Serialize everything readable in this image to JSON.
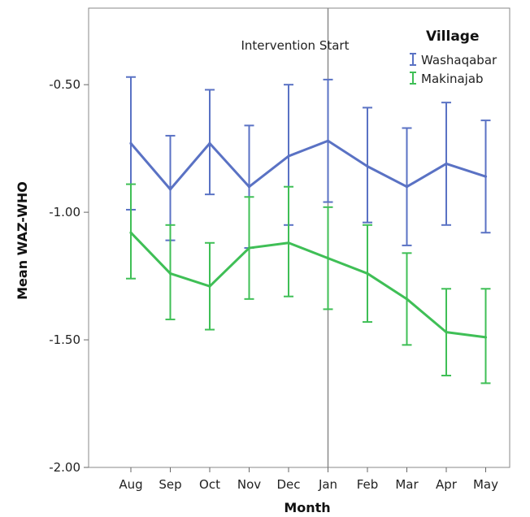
{
  "chart_data": {
    "type": "line",
    "xlabel": "Month",
    "ylabel": "Mean WAZ-WHO",
    "ylim": [
      -2.0,
      -0.2
    ],
    "yticks": [
      "-0.50",
      "-1.00",
      "-1.50",
      "-2.00"
    ],
    "ytick_values": [
      -0.5,
      -1.0,
      -1.5,
      -2.0
    ],
    "categories": [
      "Aug",
      "Sep",
      "Oct",
      "Nov",
      "Dec",
      "Jan",
      "Feb",
      "Mar",
      "Apr",
      "May"
    ],
    "legend": {
      "title": "Village",
      "placement": "top-right"
    },
    "annotation": {
      "text": "Intervention Start",
      "at_category": "Jan"
    },
    "grid": false,
    "series": [
      {
        "name": "Washaqabar",
        "color": "#5a72c4",
        "values": [
          -0.73,
          -0.91,
          -0.73,
          -0.9,
          -0.78,
          -0.72,
          -0.82,
          -0.9,
          -0.81,
          -0.86
        ],
        "upper": [
          -0.47,
          -0.7,
          -0.52,
          -0.66,
          -0.5,
          -0.48,
          -0.59,
          -0.67,
          -0.57,
          -0.64
        ],
        "lower": [
          -0.99,
          -1.11,
          -0.93,
          -1.14,
          -1.05,
          -0.96,
          -1.04,
          -1.13,
          -1.05,
          -1.08
        ]
      },
      {
        "name": "Makinajab",
        "color": "#3fbf56",
        "values": [
          -1.08,
          -1.24,
          -1.29,
          -1.14,
          -1.12,
          -1.18,
          -1.24,
          -1.34,
          -1.47,
          -1.49
        ],
        "upper": [
          -0.89,
          -1.05,
          -1.12,
          -0.94,
          -0.9,
          -0.98,
          -1.05,
          -1.16,
          -1.3,
          -1.3
        ],
        "lower": [
          -1.26,
          -1.42,
          -1.46,
          -1.34,
          -1.33,
          -1.38,
          -1.43,
          -1.52,
          -1.64,
          -1.67
        ]
      }
    ]
  }
}
